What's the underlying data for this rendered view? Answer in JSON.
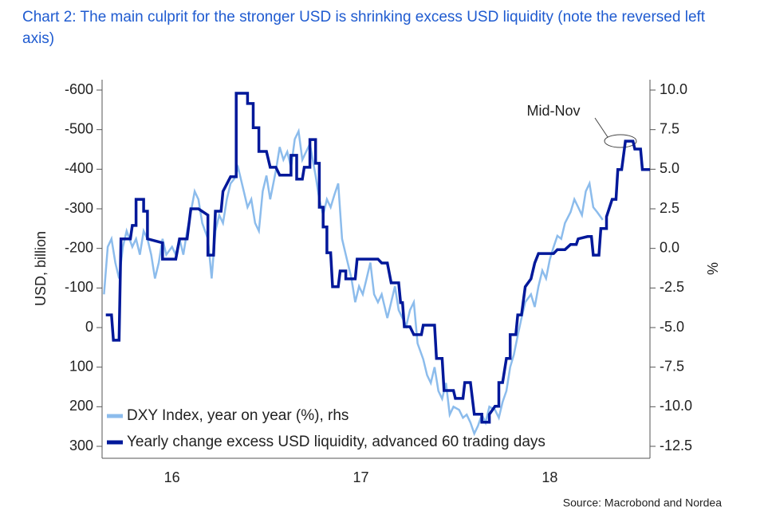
{
  "chart_data": {
    "type": "line",
    "title": "Chart 2: The main culprit for the stronger USD is shrinking excess USD liquidity (note the reversed left axis)",
    "ylabel": "USD, billion",
    "y2label": "%",
    "source": "Source: Macrobond and Nordea",
    "annotation": "Mid-Nov",
    "xlim": [
      15.63,
      18.53
    ],
    "xticks": [
      16,
      17,
      18
    ],
    "ylim": [
      -600,
      300
    ],
    "y_reversed": true,
    "yticks": [
      -600,
      -500,
      -400,
      -300,
      -200,
      -100,
      0,
      100,
      200,
      300
    ],
    "y2lim": [
      -12.5,
      10
    ],
    "y2ticks": [
      {
        "value": 10,
        "label": "10.0"
      },
      7.5,
      {
        "value": 5,
        "label": "5.0"
      },
      2.5,
      {
        "value": 0,
        "label": "0.0"
      },
      -2.5,
      {
        "value": -5,
        "label": "-5.0"
      },
      -7.5,
      {
        "value": -10,
        "label": "-10.0"
      },
      -12.5
    ],
    "grid": false,
    "legend": "lower left",
    "series": [
      {
        "name": "DXY Index, year on year (%), rhs",
        "color": "#8cbcec",
        "axis": "y2",
        "x": [
          15.64,
          15.66,
          15.68,
          15.7,
          15.72,
          15.74,
          15.76,
          15.79,
          15.81,
          15.83,
          15.85,
          15.87,
          15.89,
          15.91,
          15.93,
          15.95,
          15.97,
          16.0,
          16.02,
          16.04,
          16.06,
          16.08,
          16.1,
          16.12,
          16.14,
          16.16,
          16.19,
          16.21,
          16.23,
          16.25,
          16.27,
          16.29,
          16.31,
          16.33,
          16.35,
          16.38,
          16.4,
          16.42,
          16.44,
          16.46,
          16.48,
          16.5,
          16.52,
          16.55,
          16.57,
          16.59,
          16.61,
          16.63,
          16.65,
          16.67,
          16.69,
          16.71,
          16.73,
          16.76,
          16.78,
          16.8,
          16.82,
          16.84,
          16.86,
          16.88,
          16.9,
          16.92,
          16.95,
          16.97,
          16.99,
          17.01,
          17.03,
          17.05,
          17.07,
          17.09,
          17.11,
          17.14,
          17.16,
          17.18,
          17.2,
          17.22,
          17.24,
          17.26,
          17.28,
          17.3,
          17.33,
          17.35,
          17.37,
          17.39,
          17.41,
          17.43,
          17.45,
          17.47,
          17.49,
          17.52,
          17.54,
          17.56,
          17.58,
          17.6,
          17.62,
          17.64,
          17.66,
          17.68,
          17.71,
          17.73,
          17.75,
          17.77,
          17.79,
          17.81,
          17.83,
          17.85,
          17.87,
          17.9,
          17.92,
          17.94,
          17.96,
          17.98,
          18.0,
          18.02,
          18.04,
          18.06,
          18.08,
          18.11,
          18.13,
          18.15,
          18.17,
          18.19,
          18.21,
          18.23,
          18.25,
          18.28
        ],
        "values": [
          -2.9,
          0.1,
          0.6,
          -0.9,
          -1.9,
          0.1,
          1.1,
          0.1,
          0.6,
          -0.4,
          1.1,
          0.6,
          -0.4,
          -1.9,
          -0.9,
          0.6,
          -0.4,
          0.1,
          -0.4,
          0.6,
          -0.4,
          1.1,
          2.3,
          3.6,
          3.1,
          1.6,
          0.6,
          -1.9,
          1.1,
          2.1,
          1.6,
          3.1,
          4.1,
          4.4,
          5.1,
          3.6,
          2.6,
          3.1,
          1.6,
          1.1,
          3.6,
          4.6,
          3.1,
          4.9,
          6.4,
          5.6,
          6.1,
          5.1,
          6.9,
          7.4,
          5.6,
          6.1,
          6.6,
          4.6,
          3.1,
          2.1,
          3.1,
          2.6,
          3.4,
          4.1,
          0.6,
          -0.4,
          -1.9,
          -3.4,
          -2.4,
          -2.9,
          -1.9,
          -0.9,
          -2.9,
          -3.4,
          -2.9,
          -4.4,
          -3.4,
          -2.4,
          -3.9,
          -4.4,
          -4.9,
          -3.9,
          -3.4,
          -6.0,
          -7.0,
          -8.0,
          -8.5,
          -7.5,
          -9.0,
          -9.5,
          -8.5,
          -10.5,
          -10.0,
          -10.2,
          -10.7,
          -10.5,
          -11.0,
          -11.7,
          -11.2,
          -10.5,
          -11.0,
          -10.0,
          -10.2,
          -10.7,
          -9.7,
          -9.0,
          -7.5,
          -6.7,
          -5.5,
          -4.4,
          -3.4,
          -2.9,
          -3.7,
          -2.4,
          -1.4,
          -1.9,
          -0.7,
          0.1,
          0.8,
          0.6,
          1.6,
          2.3,
          3.1,
          2.6,
          2.1,
          3.6,
          4.1,
          2.6,
          2.3,
          1.8
        ]
      },
      {
        "name": "Yearly change excess USD liquidity, advanced 60 trading days",
        "color": "#00189a",
        "x": [
          15.65,
          15.68,
          15.69,
          15.72,
          15.73,
          15.78,
          15.79,
          15.81,
          15.81,
          15.85,
          15.85,
          15.87,
          15.87,
          15.95,
          15.95,
          16.02,
          16.04,
          16.08,
          16.1,
          16.14,
          16.19,
          16.19,
          16.22,
          16.23,
          16.26,
          16.27,
          16.31,
          16.34,
          16.34,
          16.4,
          16.4,
          16.43,
          16.43,
          16.46,
          16.46,
          16.5,
          16.52,
          16.55,
          16.57,
          16.63,
          16.63,
          16.66,
          16.66,
          16.69,
          16.7,
          16.73,
          16.73,
          16.76,
          16.76,
          16.78,
          16.78,
          16.8,
          16.8,
          16.82,
          16.82,
          16.84,
          16.85,
          16.88,
          16.89,
          16.92,
          16.92,
          16.97,
          16.98,
          17.09,
          17.11,
          17.14,
          17.16,
          17.2,
          17.21,
          17.22,
          17.23,
          17.26,
          17.28,
          17.32,
          17.33,
          17.39,
          17.4,
          17.43,
          17.44,
          17.49,
          17.5,
          17.54,
          17.55,
          17.58,
          17.6,
          17.64,
          17.64,
          17.68,
          17.68,
          17.71,
          17.73,
          17.73,
          17.75,
          17.77,
          17.79,
          17.79,
          17.82,
          17.83,
          17.85,
          17.87,
          17.9,
          17.92,
          17.94,
          18.02,
          18.04,
          18.08,
          18.11,
          18.14,
          18.15,
          18.2,
          18.22,
          18.23,
          18.26,
          18.27,
          18.3,
          18.3,
          18.33,
          18.35,
          18.36,
          18.38,
          18.4,
          18.44,
          18.45,
          18.48,
          18.49,
          18.53
        ],
        "values": [
          -32,
          -32,
          32,
          32,
          -224,
          -224,
          -258,
          -258,
          -324,
          -324,
          -294,
          -294,
          -224,
          -214,
          -173,
          -173,
          -224,
          -224,
          -300,
          -300,
          -284,
          -183,
          -183,
          -294,
          -294,
          -344,
          -381,
          -381,
          -592,
          -592,
          -566,
          -566,
          -505,
          -505,
          -445,
          -445,
          -405,
          -405,
          -385,
          -385,
          -435,
          -435,
          -375,
          -375,
          -405,
          -405,
          -475,
          -475,
          -415,
          -415,
          -304,
          -304,
          -254,
          -254,
          -189,
          -189,
          -103,
          -103,
          -143,
          -143,
          -123,
          -123,
          -173,
          -173,
          -163,
          -163,
          -113,
          -113,
          -63,
          -63,
          -2,
          -2,
          18,
          18,
          -6,
          -6,
          78,
          78,
          159,
          159,
          179,
          179,
          139,
          139,
          219,
          219,
          239,
          239,
          219,
          199,
          199,
          139,
          139,
          78,
          78,
          18,
          18,
          -32,
          -32,
          -103,
          -123,
          -163,
          -187,
          -187,
          -197,
          -197,
          -210,
          -210,
          -224,
          -230,
          -230,
          -183,
          -183,
          -250,
          -250,
          -280,
          -324,
          -324,
          -399,
          -399,
          -471,
          -471,
          -451,
          -451,
          -399,
          -399
        ]
      }
    ]
  }
}
